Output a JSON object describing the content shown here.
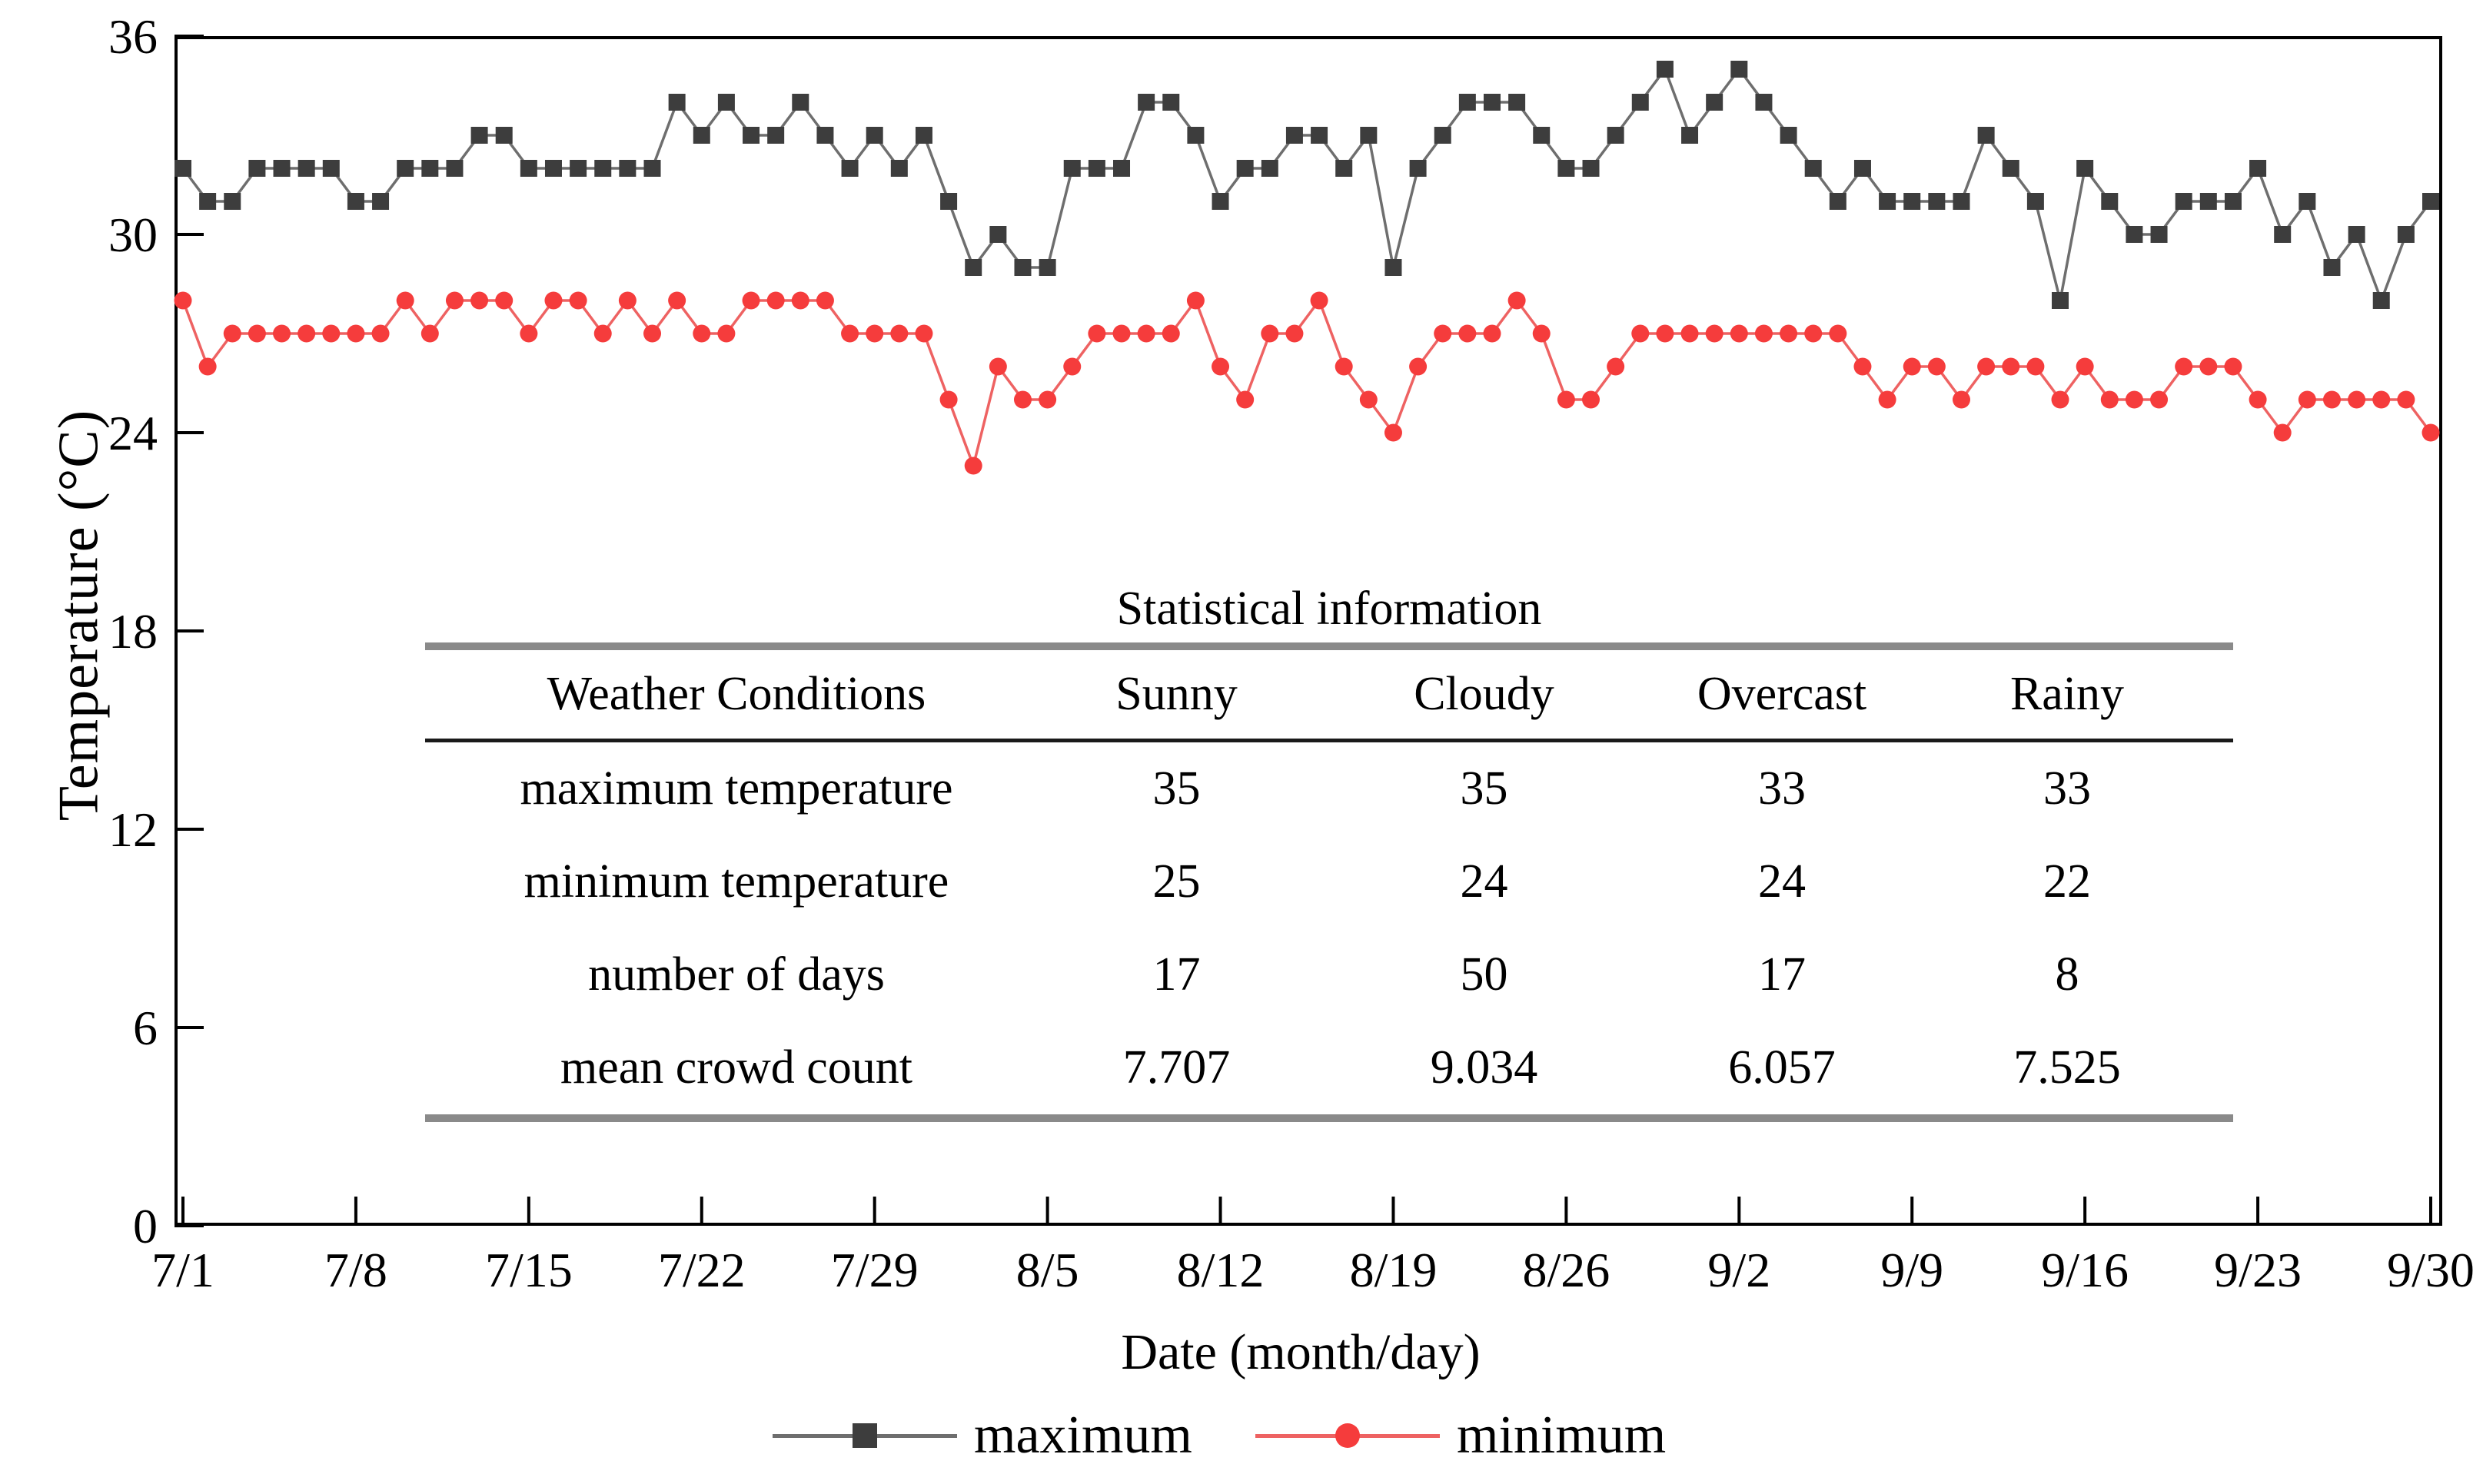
{
  "figure": {
    "background": "#ffffff"
  },
  "y_axis": {
    "label": "Temperature (°C)"
  },
  "x_axis": {
    "label": "Date (month/day)"
  },
  "legend": [
    {
      "label": "maximum",
      "marker": "square",
      "marker_color": "#3d3d3d",
      "line_color": "#6e6e6e"
    },
    {
      "label": "minimum",
      "marker": "circle",
      "marker_color": "#f53c3c",
      "line_color": "#ee6262"
    }
  ],
  "table": {
    "title": "Statistical information",
    "col_headers": [
      "Weather Conditions",
      "Sunny",
      "Cloudy",
      "Overcast",
      "Rainy"
    ],
    "rows": [
      [
        "maximum temperature",
        "35",
        "35",
        "33",
        "33"
      ],
      [
        "minimum temperature",
        "25",
        "24",
        "24",
        "22"
      ],
      [
        "number of days",
        "17",
        "50",
        "17",
        "8"
      ],
      [
        "mean crowd count",
        "7.707",
        "9.034",
        "6.057",
        "7.525"
      ]
    ]
  },
  "chart_data": {
    "type": "line",
    "title": "",
    "xlabel": "Date (month/day)",
    "ylabel": "Temperature (°C)",
    "ylim": [
      0,
      36
    ],
    "yticks": [
      0,
      6,
      12,
      18,
      24,
      30,
      36
    ],
    "xtick_labels": [
      "7/1",
      "7/8",
      "7/15",
      "7/22",
      "7/29",
      "8/5",
      "8/12",
      "8/19",
      "8/26",
      "9/2",
      "9/9",
      "9/16",
      "9/23",
      "9/30"
    ],
    "xtick_day_indices": [
      0,
      7,
      14,
      21,
      28,
      35,
      42,
      49,
      56,
      63,
      70,
      77,
      84,
      91
    ],
    "grid": false,
    "legend_position": "bottom",
    "x": [
      "7/1",
      "7/2",
      "7/3",
      "7/4",
      "7/5",
      "7/6",
      "7/7",
      "7/8",
      "7/9",
      "7/10",
      "7/11",
      "7/12",
      "7/13",
      "7/14",
      "7/15",
      "7/16",
      "7/17",
      "7/18",
      "7/19",
      "7/20",
      "7/21",
      "7/22",
      "7/23",
      "7/24",
      "7/25",
      "7/26",
      "7/27",
      "7/28",
      "7/29",
      "7/30",
      "7/31",
      "8/1",
      "8/2",
      "8/3",
      "8/4",
      "8/5",
      "8/6",
      "8/7",
      "8/8",
      "8/9",
      "8/10",
      "8/11",
      "8/12",
      "8/13",
      "8/14",
      "8/15",
      "8/16",
      "8/17",
      "8/18",
      "8/19",
      "8/20",
      "8/21",
      "8/22",
      "8/23",
      "8/24",
      "8/25",
      "8/26",
      "8/27",
      "8/28",
      "8/29",
      "8/30",
      "8/31",
      "9/1",
      "9/2",
      "9/3",
      "9/4",
      "9/5",
      "9/6",
      "9/7",
      "9/8",
      "9/9",
      "9/10",
      "9/11",
      "9/12",
      "9/13",
      "9/14",
      "9/15",
      "9/16",
      "9/17",
      "9/18",
      "9/19",
      "9/20",
      "9/21",
      "9/22",
      "9/23",
      "9/24",
      "9/25",
      "9/26",
      "9/27",
      "9/28",
      "9/29",
      "9/30"
    ],
    "series": [
      {
        "name": "maximum",
        "marker": "square",
        "marker_color": "#3d3d3d",
        "line_color": "#6e6e6e",
        "values": [
          32,
          31,
          31,
          32,
          32,
          32,
          32,
          31,
          31,
          32,
          32,
          32,
          33,
          33,
          32,
          32,
          32,
          32,
          32,
          32,
          34,
          33,
          34,
          33,
          33,
          34,
          33,
          32,
          33,
          32,
          33,
          31,
          29,
          30,
          29,
          29,
          32,
          32,
          32,
          34,
          34,
          33,
          31,
          32,
          32,
          33,
          33,
          32,
          33,
          29,
          32,
          33,
          34,
          34,
          34,
          33,
          32,
          32,
          33,
          34,
          35,
          33,
          34,
          35,
          34,
          33,
          32,
          31,
          32,
          31,
          31,
          31,
          31,
          33,
          32,
          31,
          28,
          32,
          31,
          30,
          30,
          31,
          31,
          31,
          32,
          30,
          31,
          29,
          30,
          28,
          30,
          31
        ]
      },
      {
        "name": "minimum",
        "marker": "circle",
        "marker_color": "#f53c3c",
        "line_color": "#ee6262",
        "values": [
          28,
          26,
          27,
          27,
          27,
          27,
          27,
          27,
          27,
          28,
          27,
          28,
          28,
          28,
          27,
          28,
          28,
          27,
          28,
          27,
          28,
          27,
          27,
          28,
          28,
          28,
          28,
          27,
          27,
          27,
          27,
          25,
          23,
          26,
          25,
          25,
          26,
          27,
          27,
          27,
          27,
          28,
          26,
          25,
          27,
          27,
          28,
          26,
          25,
          24,
          26,
          27,
          27,
          27,
          28,
          27,
          25,
          25,
          26,
          27,
          27,
          27,
          27,
          27,
          27,
          27,
          27,
          27,
          26,
          25,
          26,
          26,
          25,
          26,
          26,
          26,
          25,
          26,
          25,
          25,
          25,
          26,
          26,
          26,
          25,
          24,
          25,
          25,
          25,
          25,
          25,
          24
        ]
      }
    ]
  }
}
